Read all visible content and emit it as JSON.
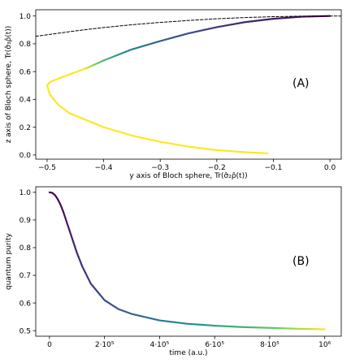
{
  "chart_data": [
    {
      "id": "A",
      "type": "line",
      "panel_label": "(A)",
      "xlabel": "y axis of Bloch sphere, Tr(σ̂₂ρ̂(t))",
      "ylabel": "z axis of Bloch sphere, Tr(σ̂₃ρ̂(t))",
      "xlim": [
        -0.52,
        0.02
      ],
      "ylim": [
        -0.03,
        1.045
      ],
      "xticks": [
        -0.5,
        -0.4,
        -0.3,
        -0.2,
        -0.1,
        0.0
      ],
      "xtick_labels": [
        "−0.5",
        "−0.4",
        "−0.3",
        "−0.2",
        "−0.1",
        "0.0"
      ],
      "yticks": [
        0.0,
        0.2,
        0.4,
        0.6,
        0.8,
        1.0
      ],
      "ytick_labels": [
        "0.0",
        "0.2",
        "0.4",
        "0.6",
        "0.8",
        "1.0"
      ],
      "series": [
        {
          "style": "solid-gradient",
          "colormap": "viridis",
          "x": [
            0.0,
            -0.05,
            -0.1,
            -0.15,
            -0.2,
            -0.25,
            -0.3,
            -0.35,
            -0.4,
            -0.43,
            -0.46,
            -0.48,
            -0.495,
            -0.5,
            -0.495,
            -0.48,
            -0.46,
            -0.43,
            -0.4,
            -0.35,
            -0.3,
            -0.25,
            -0.2,
            -0.15,
            -0.11
          ],
          "y": [
            1.0,
            0.995,
            0.98,
            0.956,
            0.92,
            0.875,
            0.82,
            0.76,
            0.68,
            0.625,
            0.58,
            0.55,
            0.525,
            0.5,
            0.435,
            0.36,
            0.3,
            0.25,
            0.2,
            0.14,
            0.095,
            0.06,
            0.035,
            0.02,
            0.012
          ]
        },
        {
          "style": "dashed",
          "color": "#000000",
          "x": [
            -0.52,
            -0.45,
            -0.4,
            -0.35,
            -0.3,
            -0.25,
            -0.2,
            -0.15,
            -0.1,
            -0.05,
            0.0,
            0.02
          ],
          "y": [
            0.854,
            0.893,
            0.917,
            0.937,
            0.954,
            0.968,
            0.98,
            0.989,
            0.995,
            0.999,
            1.0,
            1.0
          ]
        }
      ]
    },
    {
      "id": "B",
      "type": "line",
      "panel_label": "(B)",
      "xlabel": "time (a.u.)",
      "ylabel": "quantum purity",
      "xlim": [
        -50000,
        1060000
      ],
      "ylim": [
        0.48,
        1.02
      ],
      "xticks": [
        0,
        200000,
        400000,
        600000,
        800000,
        1000000
      ],
      "xtick_labels": [
        "0",
        "2·10⁵",
        "4·10⁵",
        "6·10⁵",
        "8·10⁵",
        "10⁶"
      ],
      "yticks": [
        0.5,
        0.6,
        0.7,
        0.8,
        0.9,
        1.0
      ],
      "ytick_labels": [
        "0.5",
        "0.6",
        "0.7",
        "0.8",
        "0.9",
        "1.0"
      ],
      "series": [
        {
          "style": "solid-gradient",
          "colormap": "viridis",
          "x": [
            0,
            10000,
            20000,
            30000,
            40000,
            50000,
            60000,
            80000,
            100000,
            120000,
            150000,
            200000,
            250000,
            300000,
            400000,
            500000,
            600000,
            700000,
            800000,
            900000,
            1000000
          ],
          "y": [
            1.0,
            0.998,
            0.99,
            0.975,
            0.955,
            0.93,
            0.9,
            0.84,
            0.78,
            0.73,
            0.67,
            0.61,
            0.578,
            0.56,
            0.537,
            0.525,
            0.518,
            0.513,
            0.51,
            0.507,
            0.505
          ]
        }
      ]
    }
  ]
}
